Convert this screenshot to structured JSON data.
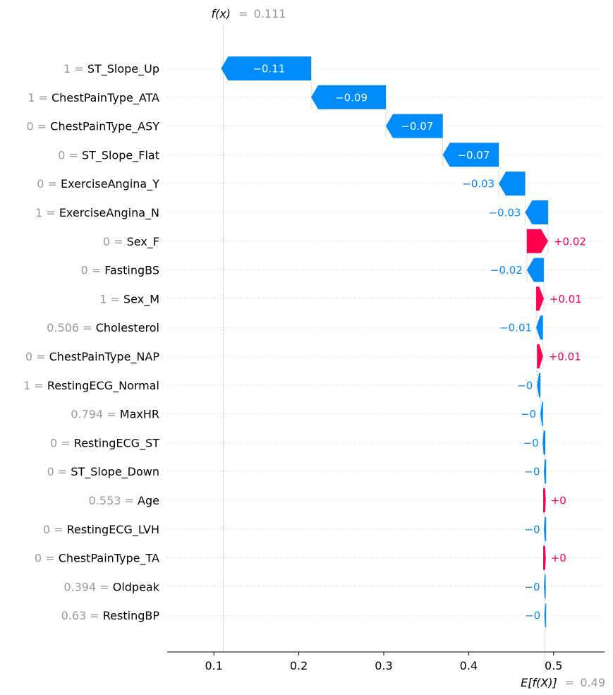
{
  "chart_data": {
    "type": "waterfall",
    "fx_label": "f(x)",
    "fx_value": "0.111",
    "expected_label": "E[f(X)]",
    "expected_value": "0.49",
    "fx": 0.111,
    "base": 0.49,
    "xlim": [
      0.045,
      0.56
    ],
    "xticks": [
      0.1,
      0.2,
      0.3,
      0.4,
      0.5
    ],
    "xtick_labels": [
      "0.1",
      "0.2",
      "0.3",
      "0.4",
      "0.5"
    ],
    "colors": {
      "negative": "#008bfb",
      "positive": "#ff0051"
    },
    "features": [
      {
        "value": "1",
        "name": "ST_Slope_Up",
        "contribution": -0.106,
        "label": "−0.11"
      },
      {
        "value": "1",
        "name": "ChestPainType_ATA",
        "contribution": -0.088,
        "label": "−0.09"
      },
      {
        "value": "0",
        "name": "ChestPainType_ASY",
        "contribution": -0.067,
        "label": "−0.07"
      },
      {
        "value": "0",
        "name": "ST_Slope_Flat",
        "contribution": -0.066,
        "label": "−0.07"
      },
      {
        "value": "0",
        "name": "ExerciseAngina_Y",
        "contribution": -0.031,
        "label": "−0.03"
      },
      {
        "value": "1",
        "name": "ExerciseAngina_N",
        "contribution": -0.027,
        "label": "−0.03"
      },
      {
        "value": "0",
        "name": "Sex_F",
        "contribution": 0.025,
        "label": "+0.02"
      },
      {
        "value": "0",
        "name": "FastingBS",
        "contribution": -0.02,
        "label": "−0.02"
      },
      {
        "value": "1",
        "name": "Sex_M",
        "contribution": 0.009,
        "label": "+0.01"
      },
      {
        "value": "0.506",
        "name": "Cholesterol",
        "contribution": -0.008,
        "label": "−0.01"
      },
      {
        "value": "0",
        "name": "ChestPainType_NAP",
        "contribution": 0.007,
        "label": "+0.01"
      },
      {
        "value": "1",
        "name": "RestingECG_Normal",
        "contribution": -0.004,
        "label": "−0"
      },
      {
        "value": "0.794",
        "name": "MaxHR",
        "contribution": -0.003,
        "label": "−0"
      },
      {
        "value": "0",
        "name": "RestingECG_ST",
        "contribution": -0.0015,
        "label": "−0"
      },
      {
        "value": "0",
        "name": "ST_Slope_Down",
        "contribution": -0.001,
        "label": "−0"
      },
      {
        "value": "0.553",
        "name": "Age",
        "contribution": 0.001,
        "label": "+0"
      },
      {
        "value": "0",
        "name": "RestingECG_LVH",
        "contribution": -0.001,
        "label": "−0"
      },
      {
        "value": "0",
        "name": "ChestPainType_TA",
        "contribution": 0.001,
        "label": "+0"
      },
      {
        "value": "0.394",
        "name": "Oldpeak",
        "contribution": -0.0005,
        "label": "−0"
      },
      {
        "value": "0.63",
        "name": "RestingBP",
        "contribution": -0.0005,
        "label": "−0"
      }
    ]
  }
}
